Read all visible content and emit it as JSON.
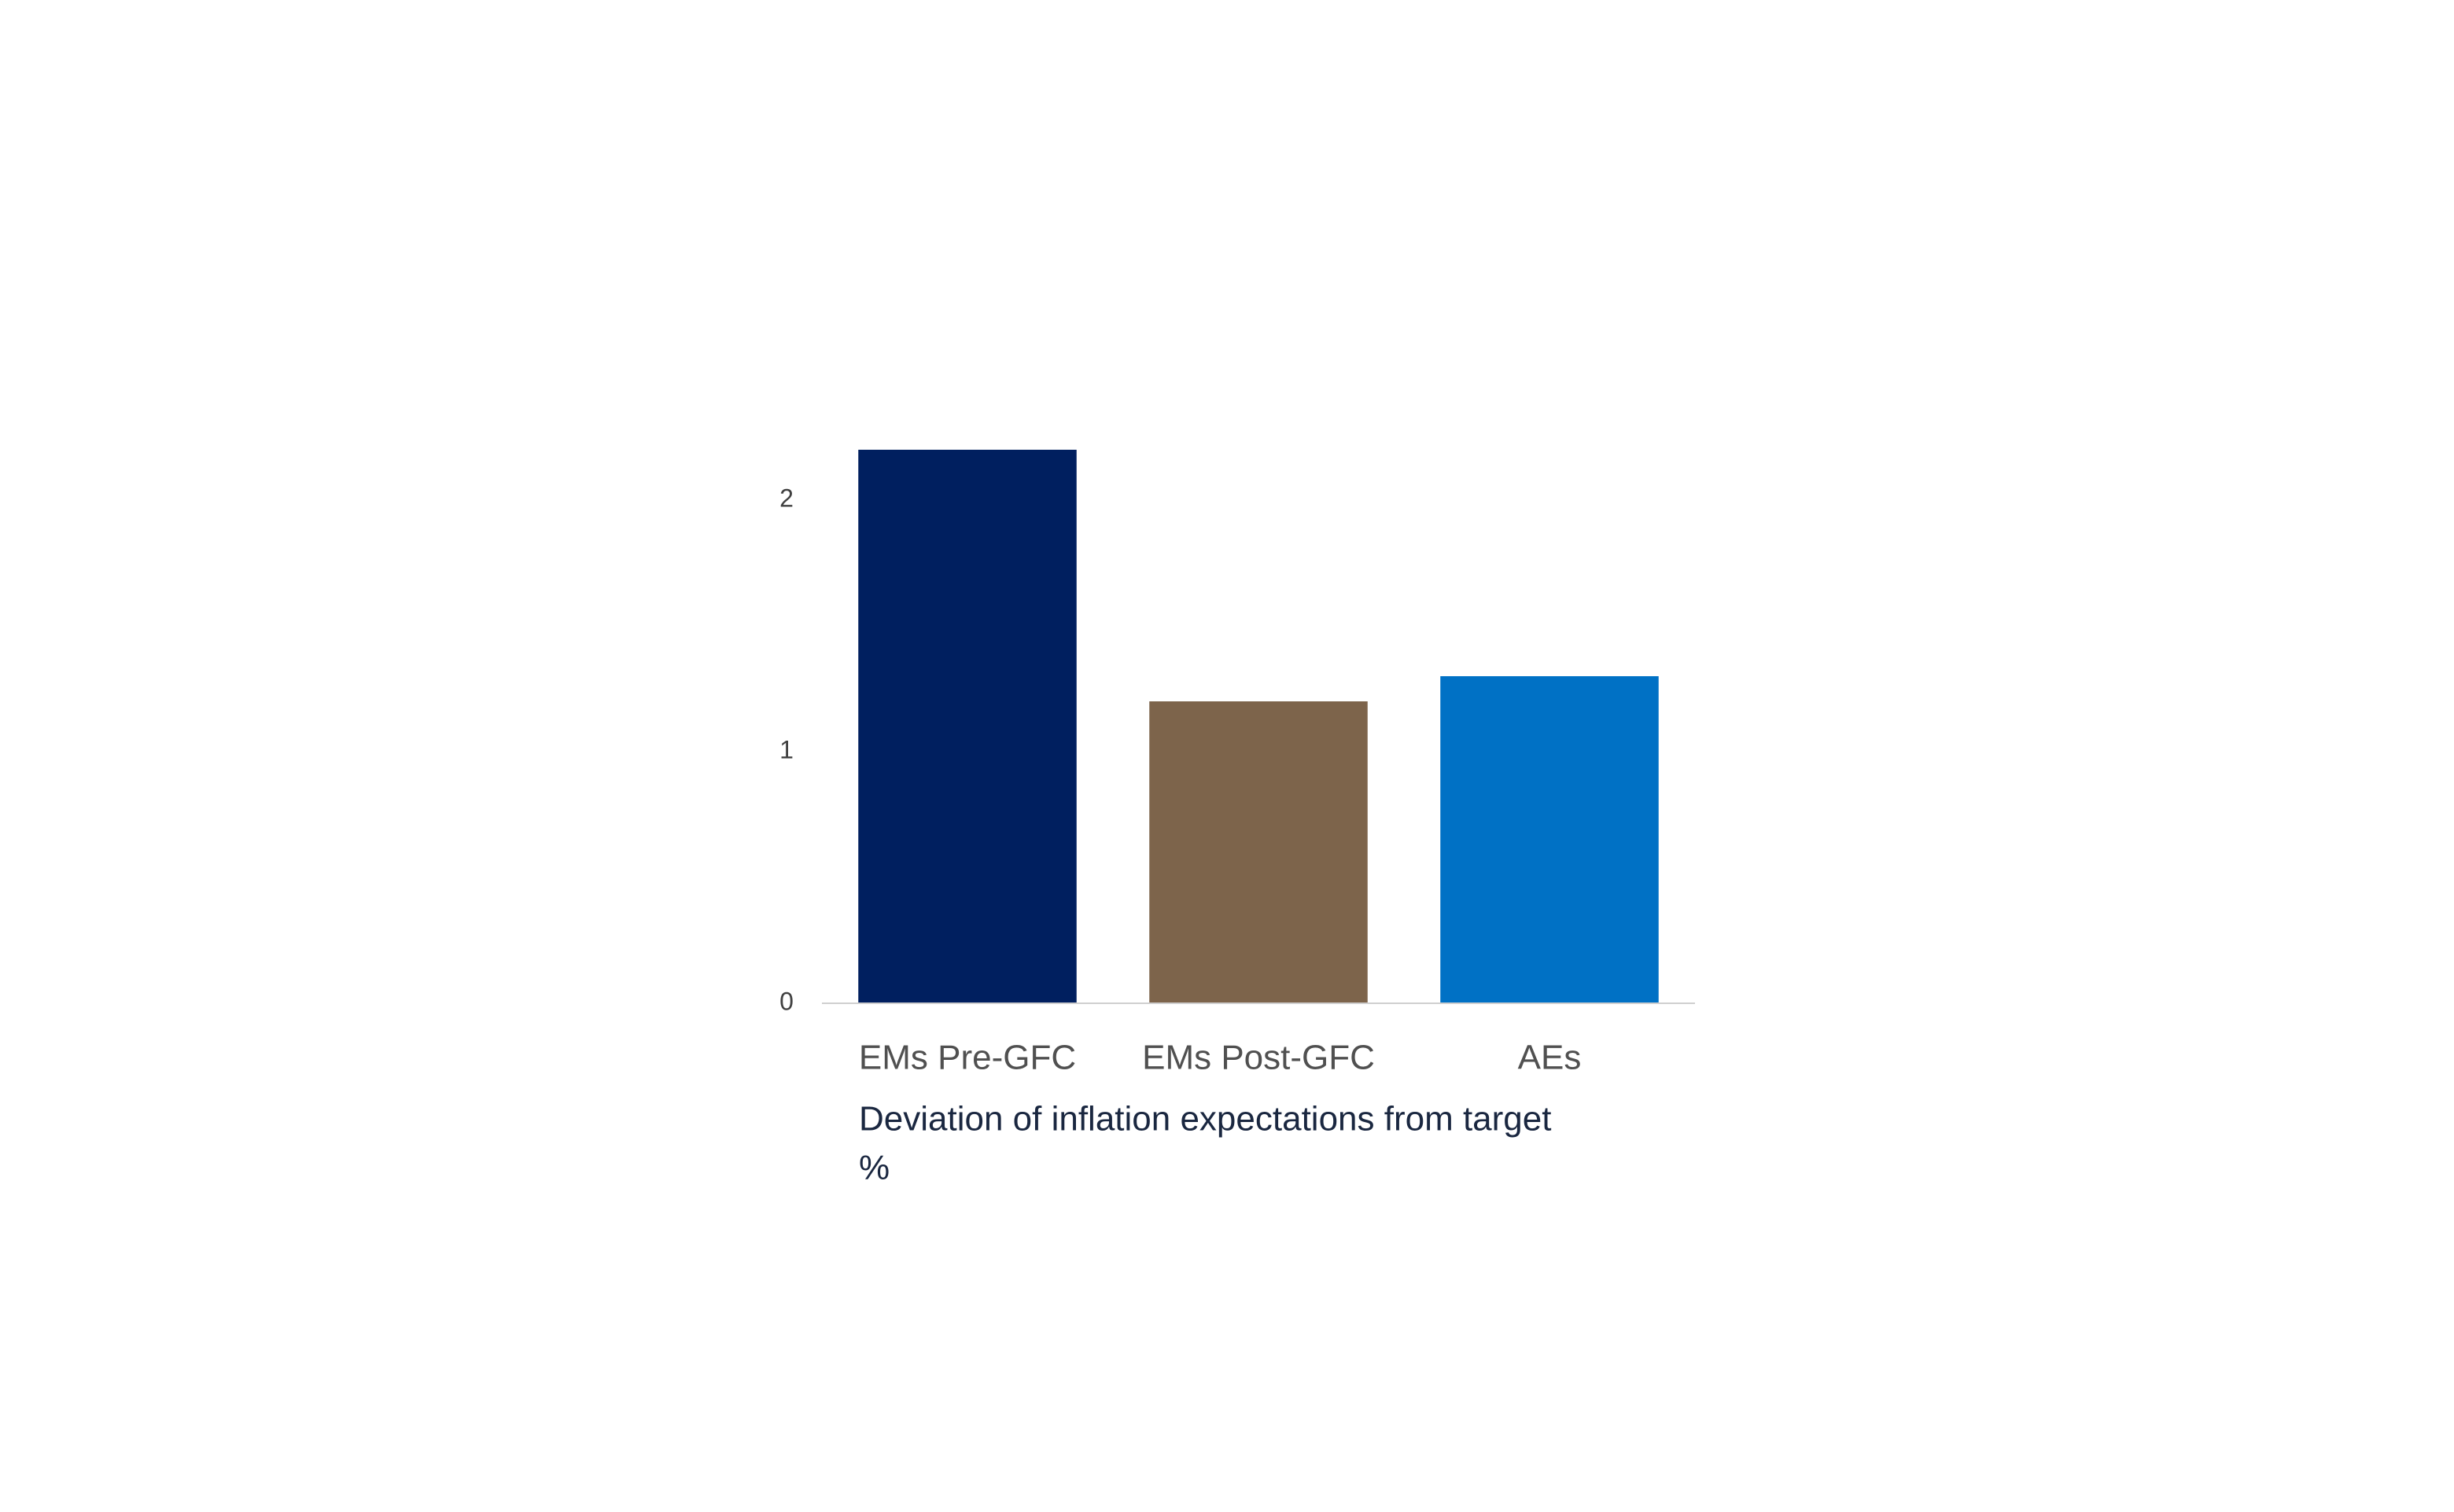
{
  "chart_data": {
    "type": "bar",
    "title": "Deviation of inflation expectations from target",
    "subtitle": "%",
    "categories": [
      "EMs Pre-GFC",
      "EMs Post-GFC",
      "AEs"
    ],
    "values": [
      2.2,
      1.2,
      1.3
    ],
    "colors": [
      "#001f5f",
      "#7d644b",
      "#0071c5"
    ],
    "ylim": [
      0,
      2.2
    ],
    "yticks": [
      0,
      1,
      2
    ],
    "grid": false
  }
}
